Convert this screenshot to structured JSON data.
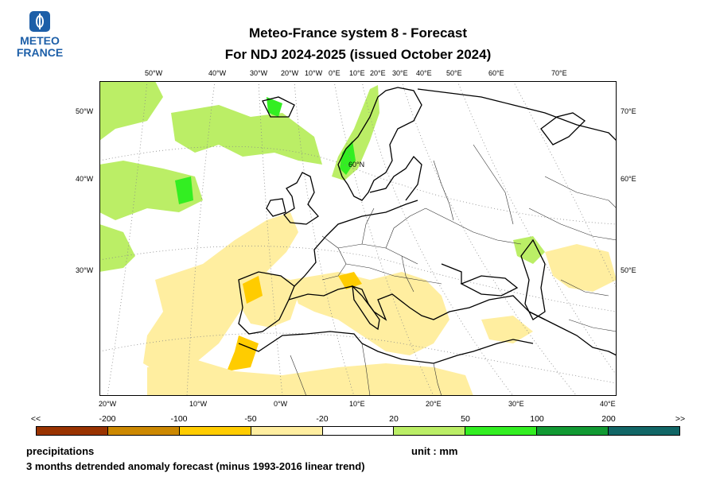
{
  "logo": {
    "line1": "METEO",
    "line2": "FRANCE"
  },
  "title": {
    "line1": "Meteo-France system 8  -  Forecast",
    "line2": "For NDJ 2024-2025      (issued October 2024)"
  },
  "map": {
    "lon_top": [
      "50°W",
      "40°W",
      "30°W",
      "20°W",
      "10°W",
      "0°E",
      "10°E",
      "20°E",
      "30°E",
      "40°E",
      "50°E",
      "60°E",
      "70°E"
    ],
    "lon_bottom": [
      "20°W",
      "10°W",
      "0°W",
      "10°E",
      "20°E",
      "30°E",
      "40°E"
    ],
    "lat_left": [
      "50°W",
      "40°W",
      "30°W"
    ],
    "lat_right": [
      "70°E",
      "60°E",
      "50°E"
    ],
    "inner_label": "60°N"
  },
  "colorbar": {
    "labels": [
      "<<",
      "-200",
      "-100",
      "-50",
      "-20",
      "20",
      "50",
      "100",
      "200",
      ">>"
    ],
    "colors": [
      "#993300",
      "#cc8800",
      "#ffcc00",
      "#ffeea0",
      "#ffffff",
      "#bbee66",
      "#33ee22",
      "#119933",
      "#116666"
    ]
  },
  "footer": {
    "variable": "precipitations",
    "unit": "unit : mm",
    "description": "3 months detrended anomaly forecast (minus 1993-2016 linear trend)"
  }
}
